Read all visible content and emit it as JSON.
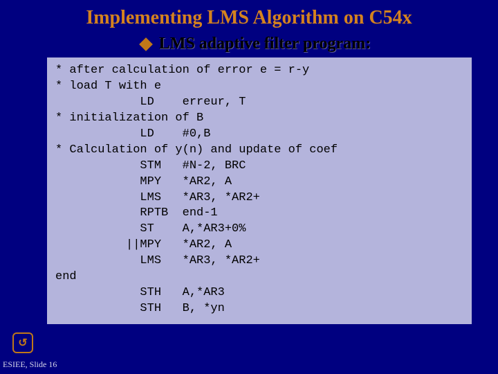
{
  "title": "Implementing LMS Algorithm on C54x",
  "subtitle": "LMS adaptive filter program:",
  "code": "* after calculation of error e = r-y\n* load T with e\n            LD    erreur, T\n* initialization of B\n            LD    #0,B\n* Calculation of y(n) and update of coef\n            STM   #N-2, BRC\n            MPY   *AR2, A\n            LMS   *AR3, *AR2+\n            RPTB  end-1\n            ST    A,*AR3+0%\n          ||MPY   *AR2, A\n            LMS   *AR3, *AR2+\nend\n            STH   A,*AR3\n            STH   B, *yn",
  "footer_icon": "↺",
  "footer": "ESIEE, Slide 16",
  "colors": {
    "background": "#000080",
    "title_color": "#d4821f",
    "bullet_color": "#c07818",
    "code_bg": "#b4b4dc",
    "footer_color": "#d4d4e8"
  }
}
